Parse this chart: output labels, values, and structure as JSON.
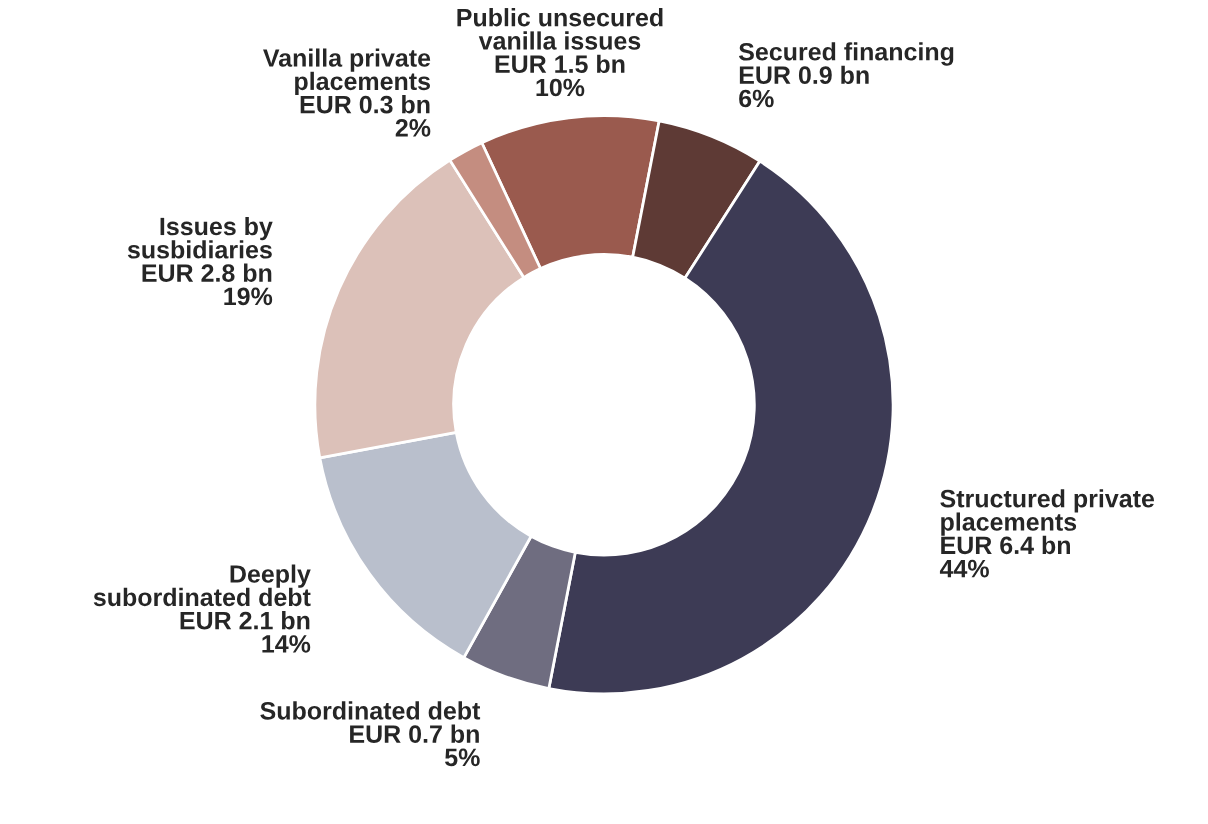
{
  "chart_data": {
    "type": "donut",
    "categories": [
      "Public unsecured\nvanilla issues\nEUR 1.5 bn",
      "Secured financing\nEUR 0.9 bn",
      "Structured private\nplacements\nEUR 6.4 bn",
      "Subordinated debt\nEUR 0.7 bn",
      "Deeply\nsubordinated debt\nEUR 2.1 bn",
      "Issues by\nsusbidiaries\nEUR 2.8 bn",
      "Vanilla private\nplacements\nEUR 0.3 bn"
    ],
    "values": [
      10,
      6,
      44,
      5,
      14,
      19,
      2
    ],
    "value_labels": [
      "10%",
      "6%",
      "44%",
      "5%",
      "14%",
      "19%",
      "2%"
    ],
    "colors": [
      "#9a5a4e",
      "#5e3a35",
      "#3d3b55",
      "#6f6d80",
      "#b9bfcc",
      "#dcc1b9",
      "#c48d80"
    ],
    "legend": false
  }
}
